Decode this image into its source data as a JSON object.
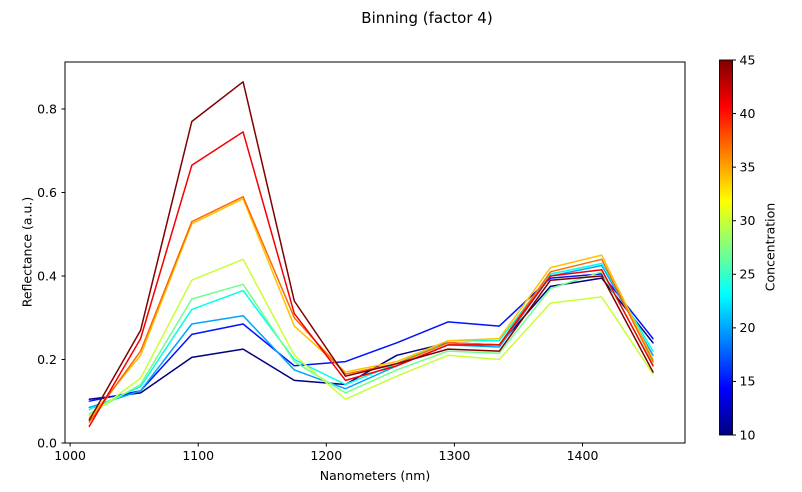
{
  "figure": {
    "title": "Binning (factor 4)"
  },
  "chart_data": {
    "type": "line",
    "title": "Binning (factor 4)",
    "xlabel": "Nanometers (nm)",
    "ylabel": "Reflectance (a.u.)",
    "xlim": [
      996,
      1480
    ],
    "ylim": [
      0,
      0.9125
    ],
    "x_ticks": [
      "1000",
      "1100",
      "1200",
      "1300",
      "1400"
    ],
    "y_ticks": [
      "0.0",
      "0.2",
      "0.4",
      "0.6",
      "0.8"
    ],
    "grid": false,
    "legend": "none",
    "x": [
      1015,
      1055,
      1095,
      1135,
      1175,
      1215,
      1255,
      1295,
      1335,
      1375,
      1415,
      1455
    ],
    "series": [
      {
        "name": "concentration-10",
        "concentration": 10,
        "color": "#000080",
        "values": [
          0.105,
          0.12,
          0.205,
          0.225,
          0.15,
          0.14,
          0.21,
          0.24,
          0.235,
          0.375,
          0.395,
          0.24
        ]
      },
      {
        "name": "concentration-15",
        "concentration": 15,
        "color": "#0012ff",
        "values": [
          0.1,
          0.125,
          0.26,
          0.285,
          0.185,
          0.195,
          0.24,
          0.29,
          0.28,
          0.395,
          0.405,
          0.25
        ]
      },
      {
        "name": "concentration-20",
        "concentration": 20,
        "color": "#00a4ff",
        "values": [
          0.085,
          0.125,
          0.285,
          0.305,
          0.175,
          0.13,
          0.185,
          0.235,
          0.23,
          0.4,
          0.425,
          0.21
        ]
      },
      {
        "name": "concentration-24",
        "concentration": 24,
        "color": "#00ffe6",
        "values": [
          0.08,
          0.135,
          0.32,
          0.365,
          0.2,
          0.14,
          0.19,
          0.245,
          0.245,
          0.405,
          0.43,
          0.22
        ]
      },
      {
        "name": "concentration-27",
        "concentration": 27,
        "color": "#71ff8e",
        "values": [
          0.07,
          0.14,
          0.345,
          0.38,
          0.195,
          0.12,
          0.175,
          0.22,
          0.215,
          0.37,
          0.41,
          0.19
        ]
      },
      {
        "name": "concentration-30",
        "concentration": 30,
        "color": "#c8ff37",
        "values": [
          0.065,
          0.155,
          0.39,
          0.44,
          0.21,
          0.105,
          0.16,
          0.21,
          0.2,
          0.335,
          0.35,
          0.165
        ]
      },
      {
        "name": "concentration-34",
        "concentration": 34,
        "color": "#ffc100",
        "values": [
          0.06,
          0.21,
          0.525,
          0.585,
          0.28,
          0.17,
          0.195,
          0.245,
          0.25,
          0.42,
          0.45,
          0.2
        ]
      },
      {
        "name": "concentration-37",
        "concentration": 37,
        "color": "#ff6a00",
        "values": [
          0.05,
          0.22,
          0.53,
          0.59,
          0.3,
          0.165,
          0.19,
          0.24,
          0.235,
          0.41,
          0.44,
          0.195
        ]
      },
      {
        "name": "concentration-41",
        "concentration": 41,
        "color": "#f40000",
        "values": [
          0.04,
          0.25,
          0.665,
          0.745,
          0.31,
          0.15,
          0.185,
          0.235,
          0.235,
          0.4,
          0.415,
          0.185
        ]
      },
      {
        "name": "concentration-45",
        "concentration": 45,
        "color": "#800000",
        "values": [
          0.055,
          0.27,
          0.77,
          0.865,
          0.34,
          0.16,
          0.19,
          0.225,
          0.22,
          0.39,
          0.4,
          0.17
        ]
      }
    ],
    "colorbar": {
      "label": "Concentration",
      "min": 10,
      "max": 45,
      "ticks": [
        "10",
        "15",
        "20",
        "25",
        "30",
        "35",
        "40",
        "45"
      ],
      "colormap": "jet",
      "gradient_stops": [
        "#000080",
        "#0000ff",
        "#0080ff",
        "#00ffff",
        "#80ff80",
        "#ffff00",
        "#ff8000",
        "#ff0000",
        "#800000"
      ]
    }
  }
}
